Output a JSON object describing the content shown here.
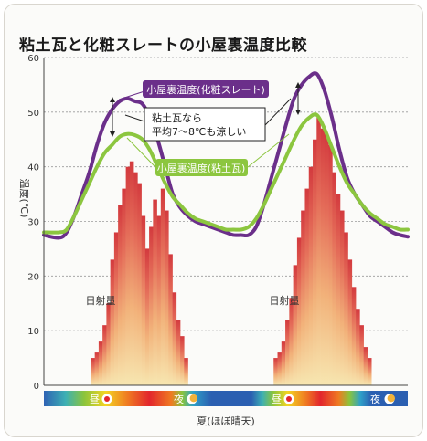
{
  "chart_data": {
    "type": "line",
    "title": "粘土瓦と化粧スレートの小屋裏温度比較",
    "ylabel": "温度(℃)",
    "xlabel": "夏(ほぼ晴天)",
    "ylim": [
      0,
      60
    ],
    "yticks": [
      0,
      10,
      20,
      30,
      40,
      50,
      60
    ],
    "x_range": [
      0,
      48
    ],
    "series": [
      {
        "name": "小屋裏温度(化粧スレート)",
        "color": "#6b2f8a",
        "points": [
          [
            0,
            27.5
          ],
          [
            2,
            27
          ],
          [
            3,
            28
          ],
          [
            4,
            31
          ],
          [
            5,
            35
          ],
          [
            6,
            39
          ],
          [
            7,
            44
          ],
          [
            8,
            48
          ],
          [
            9,
            50.5
          ],
          [
            10,
            52
          ],
          [
            11,
            52.5
          ],
          [
            12,
            52
          ],
          [
            13,
            51.5
          ],
          [
            14,
            49
          ],
          [
            15,
            45
          ],
          [
            16,
            40
          ],
          [
            17,
            35
          ],
          [
            18,
            32.5
          ],
          [
            19,
            31
          ],
          [
            20,
            30
          ],
          [
            21,
            29.5
          ],
          [
            22,
            29
          ],
          [
            23,
            28.5
          ],
          [
            24,
            28
          ],
          [
            25,
            27.5
          ],
          [
            26,
            27.5
          ],
          [
            27,
            27.5
          ],
          [
            28,
            29
          ],
          [
            29,
            33
          ],
          [
            30,
            38
          ],
          [
            31,
            43
          ],
          [
            32,
            48
          ],
          [
            33,
            52.5
          ],
          [
            34,
            55
          ],
          [
            35,
            56.5
          ],
          [
            36,
            57
          ],
          [
            37,
            54
          ],
          [
            38,
            49
          ],
          [
            39,
            43
          ],
          [
            40,
            38
          ],
          [
            41,
            35
          ],
          [
            42,
            33
          ],
          [
            43,
            31
          ],
          [
            44,
            30
          ],
          [
            45,
            29
          ],
          [
            46,
            28
          ],
          [
            47,
            27.5
          ],
          [
            48,
            27.2
          ]
        ]
      },
      {
        "name": "小屋裏温度(粘土瓦)",
        "color": "#8cc63f",
        "points": [
          [
            0,
            28
          ],
          [
            2,
            28
          ],
          [
            3,
            28.5
          ],
          [
            4,
            31
          ],
          [
            5,
            34
          ],
          [
            6,
            37
          ],
          [
            7,
            40
          ],
          [
            8,
            42.5
          ],
          [
            9,
            44
          ],
          [
            10,
            45.5
          ],
          [
            11,
            46
          ],
          [
            12,
            45.8
          ],
          [
            13,
            45
          ],
          [
            14,
            43
          ],
          [
            15,
            40
          ],
          [
            16,
            37
          ],
          [
            17,
            34.5
          ],
          [
            18,
            33
          ],
          [
            19,
            31.5
          ],
          [
            20,
            30.5
          ],
          [
            21,
            30
          ],
          [
            22,
            29.5
          ],
          [
            23,
            29
          ],
          [
            24,
            28.5
          ],
          [
            25,
            28.5
          ],
          [
            26,
            28.5
          ],
          [
            27,
            29
          ],
          [
            28,
            30.5
          ],
          [
            29,
            33
          ],
          [
            30,
            36
          ],
          [
            31,
            39
          ],
          [
            32,
            42
          ],
          [
            33,
            45
          ],
          [
            34,
            47.5
          ],
          [
            35,
            49
          ],
          [
            36,
            49.5
          ],
          [
            37,
            47
          ],
          [
            38,
            43.5
          ],
          [
            39,
            40
          ],
          [
            40,
            37
          ],
          [
            41,
            35
          ],
          [
            42,
            33
          ],
          [
            43,
            31.5
          ],
          [
            44,
            30.5
          ],
          [
            45,
            29.5
          ],
          [
            46,
            29
          ],
          [
            47,
            28.5
          ],
          [
            48,
            28.5
          ]
        ]
      }
    ],
    "bars": {
      "name": "日射量",
      "label": "日射量",
      "values": [
        5,
        6,
        8,
        11,
        15,
        23,
        28,
        33,
        36,
        40,
        41,
        39,
        37,
        31,
        25,
        29,
        34,
        31,
        36,
        32,
        24,
        17,
        12,
        9,
        5,
        6,
        8,
        12,
        16,
        22,
        27,
        32,
        36,
        40,
        45,
        49,
        47,
        46,
        44,
        39,
        35,
        32,
        28,
        23,
        18,
        14,
        11,
        7,
        5
      ],
      "groups": [
        {
          "start": 6.2,
          "end": 19.0,
          "values": [
            5,
            6,
            8,
            11,
            15,
            23,
            28,
            33,
            36,
            40,
            41,
            39,
            37,
            31,
            25,
            29,
            34,
            31,
            36,
            32,
            24,
            17,
            12,
            9,
            5
          ]
        },
        {
          "start": 30.3,
          "end": 43.2,
          "values": [
            5,
            6,
            8,
            12,
            16,
            22,
            27,
            32,
            36,
            40,
            45,
            49,
            47,
            46,
            44,
            39,
            35,
            32,
            28,
            23,
            18,
            14,
            11,
            7,
            5
          ]
        }
      ]
    },
    "annotations": {
      "slate_label": "小屋裏温度(化粧スレート)",
      "clay_label": "小屋裏温度(粘土瓦)",
      "note_line1": "粘土瓦なら",
      "note_line2": "平均7～8℃も涼しい",
      "radiation_label": "日射量"
    },
    "time_band": [
      {
        "label": "昼",
        "icon": "sun-icon"
      },
      {
        "label": "夜",
        "icon": "moon-icon"
      },
      {
        "label": "昼",
        "icon": "sun-icon"
      },
      {
        "label": "夜",
        "icon": "moon-icon"
      }
    ],
    "grid": true,
    "legend": "inline-labels"
  }
}
